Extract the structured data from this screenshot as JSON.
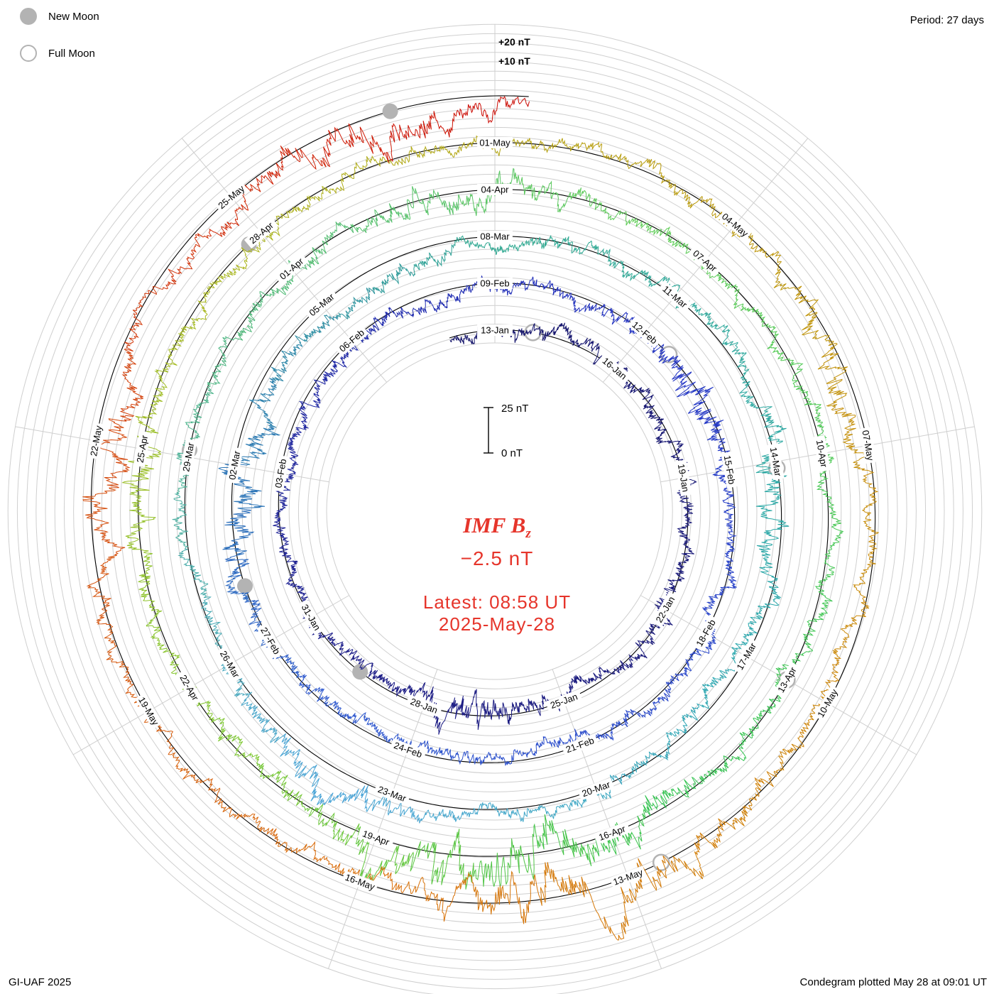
{
  "header": {
    "period_label": "Period: 27 days"
  },
  "legend": {
    "new_moon": "New Moon",
    "full_moon": "Full Moon"
  },
  "footer": {
    "left": "GI-UAF 2025",
    "right": "Condegram plotted May 28 at 09:01 UT"
  },
  "center": {
    "imf_prefix": "IMF B",
    "imf_sub": "z",
    "value": "−2.5 nT",
    "latest_line1": "Latest: 08:58 UT",
    "latest_line2": "2025-May-28"
  },
  "colors": {
    "annotation_red": "#e6352b",
    "grid": "#cfcfcf",
    "baseline": "#000000",
    "moon": "#b3b3b3"
  },
  "chart_data": {
    "type": "line",
    "variant": "condegram-polar-spiral",
    "quantity": "IMF Bz",
    "units": "nT",
    "period_days": 27,
    "date_at_top_of_first_ring": "2025-01-13",
    "data_start_day": -1.1,
    "data_end_day": 135.37,
    "latest_value_nT": -2.5,
    "latest_time": "08:58 UT 2025-May-28",
    "axis_labels_top": [
      "+20 nT",
      "+10 nT"
    ],
    "scale_bar": {
      "top_label": "25 nT",
      "bottom_label": "0 nT",
      "span_nT": 25
    },
    "date_ticks": [
      [
        0,
        "13-Jan"
      ],
      [
        3,
        "16-Jan"
      ],
      [
        6,
        "19-Jan"
      ],
      [
        9,
        "22-Jan"
      ],
      [
        12,
        "25-Jan"
      ],
      [
        15,
        "28-Jan"
      ],
      [
        18,
        "31-Jan"
      ],
      [
        21,
        "03-Feb"
      ],
      [
        24,
        "06-Feb"
      ],
      [
        27,
        "09-Feb"
      ],
      [
        30,
        "12-Feb"
      ],
      [
        33,
        "15-Feb"
      ],
      [
        36,
        "18-Feb"
      ],
      [
        39,
        "21-Feb"
      ],
      [
        42,
        "24-Feb"
      ],
      [
        45,
        "27-Feb"
      ],
      [
        48,
        "02-Mar"
      ],
      [
        51,
        "05-Mar"
      ],
      [
        54,
        "08-Mar"
      ],
      [
        57,
        "11-Mar"
      ],
      [
        60,
        "14-Mar"
      ],
      [
        63,
        "17-Mar"
      ],
      [
        66,
        "20-Mar"
      ],
      [
        69,
        "23-Mar"
      ],
      [
        72,
        "26-Mar"
      ],
      [
        75,
        "29-Mar"
      ],
      [
        78,
        "01-Apr"
      ],
      [
        81,
        "04-Apr"
      ],
      [
        84,
        "07-Apr"
      ],
      [
        87,
        "10-Apr"
      ],
      [
        90,
        "13-Apr"
      ],
      [
        93,
        "16-Apr"
      ],
      [
        96,
        "19-Apr"
      ],
      [
        99,
        "22-Apr"
      ],
      [
        102,
        "25-Apr"
      ],
      [
        105,
        "28-Apr"
      ],
      [
        108,
        "01-May"
      ],
      [
        111,
        "04-May"
      ],
      [
        114,
        "07-May"
      ],
      [
        117,
        "10-May"
      ],
      [
        120,
        "13-May"
      ],
      [
        123,
        "16-May"
      ],
      [
        126,
        "19-May"
      ],
      [
        129,
        "22-May"
      ],
      [
        132,
        "25-May"
      ]
    ],
    "new_moon_days": [
      16.5,
      46.0,
      75.1,
      104.8,
      133.9
    ],
    "full_moon_days": [
      0.9,
      30.6,
      60.1,
      90.0,
      119.6
    ],
    "colormap_stops": [
      [
        -1.2,
        "#16166b"
      ],
      [
        16,
        "#1d1d86"
      ],
      [
        30,
        "#2435c4"
      ],
      [
        44,
        "#2e59cf"
      ],
      [
        54,
        "#2fa98f"
      ],
      [
        63,
        "#2aa7ad"
      ],
      [
        70,
        "#4aa3d8"
      ],
      [
        77,
        "#4db87a"
      ],
      [
        83,
        "#5ecc55"
      ],
      [
        92,
        "#2fc24f"
      ],
      [
        98,
        "#7dc832"
      ],
      [
        104,
        "#a9b81e"
      ],
      [
        110,
        "#b99a0a"
      ],
      [
        117,
        "#cc8404"
      ],
      [
        123,
        "#d96e08"
      ],
      [
        129,
        "#d4470c"
      ],
      [
        134,
        "#cd1606"
      ],
      [
        136,
        "#c80000"
      ]
    ],
    "trace_synthesis_note": "minute-scale Bz values are not individually legible in the source image; trace is reproduced as seeded noise with storm intervals visible in the plot",
    "synthesis": {
      "seed": 20250528,
      "storm_events": [
        [
          14,
          0.9,
          1.3
        ],
        [
          31.5,
          0.8,
          1.1
        ],
        [
          47.5,
          1.1,
          1.3
        ],
        [
          60.5,
          0.8,
          1.0
        ],
        [
          70,
          0.7,
          0.9
        ],
        [
          80.5,
          0.9,
          1.0
        ],
        [
          94.4,
          1.4,
          2.8
        ],
        [
          101.5,
          0.7,
          1.1
        ],
        [
          113,
          0.8,
          0.9
        ],
        [
          120.7,
          1.1,
          2.3
        ],
        [
          128.8,
          0.8,
          1.2
        ],
        [
          133.6,
          0.9,
          1.4
        ]
      ]
    }
  }
}
